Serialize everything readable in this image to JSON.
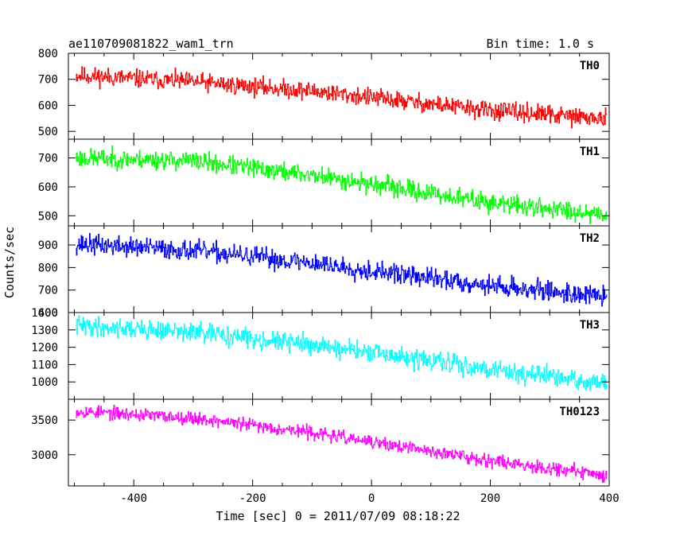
{
  "chart_data": {
    "type": "line",
    "title": "ae110709081822_wam1_trn",
    "subtitle": "Bin time: 1.0 s",
    "xlabel": "Time [sec] 0 = 2011/07/09 08:18:22",
    "ylabel": "Counts/sec",
    "xlim": [
      -510,
      400
    ],
    "xticks": [
      -400,
      -200,
      0,
      200,
      400
    ],
    "x_start": -497,
    "x_end": 396,
    "x_step": 1,
    "panels": [
      {
        "name": "TH0",
        "color": "#ff0000",
        "ylim": [
          470,
          800
        ],
        "yticks": [
          500,
          600,
          700,
          800
        ],
        "trend": [
          [
            -497,
            715
          ],
          [
            -300,
            690
          ],
          [
            -100,
            655
          ],
          [
            0,
            630
          ],
          [
            200,
            580
          ],
          [
            396,
            548
          ]
        ],
        "noise_amplitude": 30,
        "seed": 11
      },
      {
        "name": "TH1",
        "color": "#00ff00",
        "ylim": [
          465,
          765
        ],
        "yticks": [
          500,
          600,
          700
        ],
        "trend": [
          [
            -497,
            700
          ],
          [
            -300,
            690
          ],
          [
            -100,
            640
          ],
          [
            0,
            610
          ],
          [
            200,
            545
          ],
          [
            396,
            505
          ]
        ],
        "noise_amplitude": 28,
        "seed": 23
      },
      {
        "name": "TH2",
        "color": "#0000ff",
        "ylim": [
          600,
          985
        ],
        "yticks": [
          600,
          700,
          800,
          900
        ],
        "trend": [
          [
            -497,
            905
          ],
          [
            -300,
            875
          ],
          [
            -100,
            820
          ],
          [
            0,
            785
          ],
          [
            200,
            720
          ],
          [
            396,
            670
          ]
        ],
        "noise_amplitude": 38,
        "seed": 37
      },
      {
        "name": "TH3",
        "color": "#00ffff",
        "ylim": [
          900,
          1400
        ],
        "yticks": [
          1000,
          1100,
          1200,
          1300,
          1400
        ],
        "trend": [
          [
            -497,
            1325
          ],
          [
            -300,
            1285
          ],
          [
            -100,
            1215
          ],
          [
            0,
            1165
          ],
          [
            200,
            1075
          ],
          [
            396,
            985
          ]
        ],
        "noise_amplitude": 48,
        "seed": 41
      },
      {
        "name": "TH0123",
        "color": "#ff00ff",
        "ylim": [
          2550,
          3800
        ],
        "yticks": [
          3000,
          3500
        ],
        "trend": [
          [
            -497,
            3630
          ],
          [
            -300,
            3530
          ],
          [
            -100,
            3320
          ],
          [
            0,
            3180
          ],
          [
            200,
            2920
          ],
          [
            396,
            2700
          ]
        ],
        "noise_amplitude": 80,
        "seed": 53
      }
    ]
  }
}
